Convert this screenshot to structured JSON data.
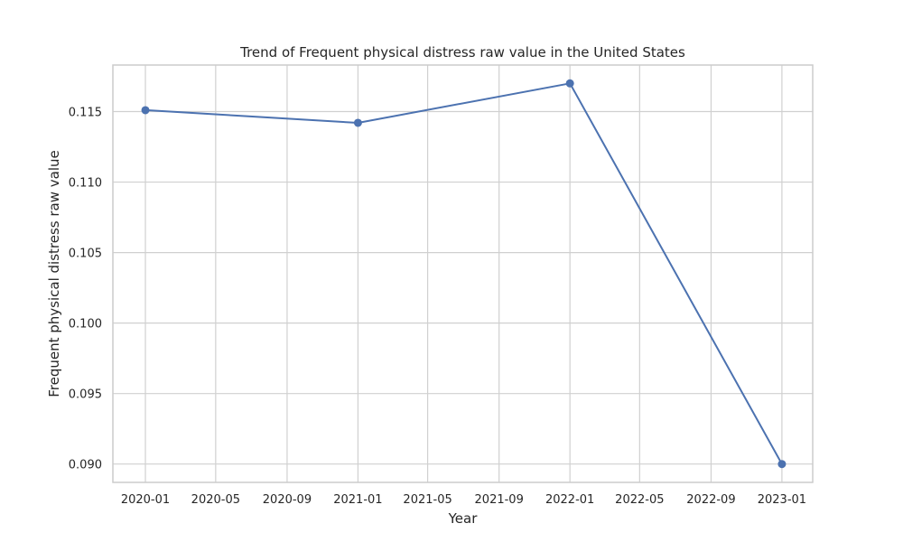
{
  "chart_data": {
    "type": "line",
    "title": "Trend of Frequent physical distress raw value in the United States",
    "xlabel": "Year",
    "ylabel": "Frequent physical distress raw value",
    "x": [
      "2020-01-01",
      "2021-01-01",
      "2022-01-01",
      "2023-01-01"
    ],
    "series": [
      {
        "values": [
          0.1151,
          0.1142,
          0.117,
          0.09
        ]
      }
    ],
    "x_ticks": [
      "2020-01",
      "2020-05",
      "2020-09",
      "2021-01",
      "2021-05",
      "2021-09",
      "2022-01",
      "2022-05",
      "2022-09",
      "2023-01"
    ],
    "y_ticks": [
      "0.090",
      "0.095",
      "0.100",
      "0.105",
      "0.110",
      "0.115"
    ],
    "xlim": [
      "2019-11-06",
      "2023-02-23"
    ],
    "ylim": [
      0.0887,
      0.1183
    ],
    "grid": true,
    "legend": "none",
    "colors": {
      "line": "#4c72b0",
      "marker": "#4c72b0"
    }
  }
}
